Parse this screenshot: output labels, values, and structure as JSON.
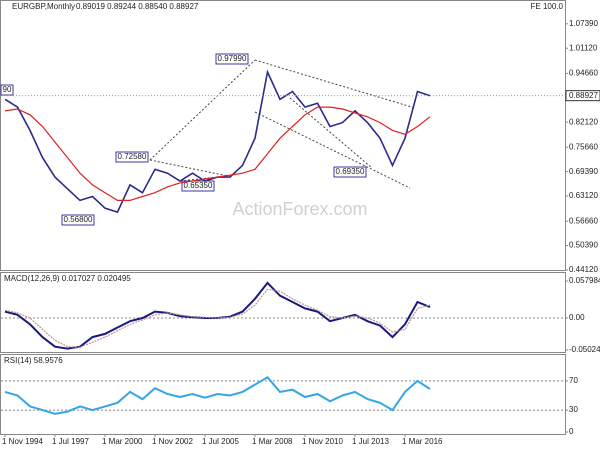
{
  "chart_data": [
    {
      "type": "line",
      "title": "EURGBP,Monthly",
      "subtitle": "0.89019 0.89244 0.88540 0.88927",
      "corner_text": "FE 100.0",
      "watermark": "ActionForex.com",
      "series": [
        {
          "color": "#2b2b8c",
          "values": [
            0.88,
            0.86,
            0.8,
            0.73,
            0.68,
            0.65,
            0.62,
            0.63,
            0.6,
            0.59,
            0.66,
            0.64,
            0.7,
            0.69,
            0.67,
            0.69,
            0.67,
            0.68,
            0.68,
            0.71,
            0.78,
            0.95,
            0.88,
            0.9,
            0.86,
            0.87,
            0.81,
            0.82,
            0.85,
            0.82,
            0.78,
            0.71,
            0.78,
            0.9,
            0.88927
          ]
        },
        {
          "color": "#e02020",
          "values": [
            0.85,
            0.855,
            0.84,
            0.81,
            0.77,
            0.73,
            0.69,
            0.66,
            0.64,
            0.62,
            0.62,
            0.63,
            0.64,
            0.655,
            0.665,
            0.67,
            0.675,
            0.68,
            0.685,
            0.69,
            0.7,
            0.74,
            0.78,
            0.81,
            0.84,
            0.86,
            0.86,
            0.855,
            0.845,
            0.835,
            0.82,
            0.8,
            0.79,
            0.81,
            0.835
          ]
        }
      ],
      "annotations": [
        "0.97990",
        "0.72580",
        "0.65350",
        "0.56800",
        "0.69350",
        "90"
      ],
      "ylim": [
        0.4412,
        1.13
      ],
      "yticks": [
        {
          "value": 0.4412,
          "label": "0.44120"
        },
        {
          "value": 0.5039,
          "label": "0.50390"
        },
        {
          "value": 0.5666,
          "label": "0.56660"
        },
        {
          "value": 0.6312,
          "label": "0.63120"
        },
        {
          "value": 0.6939,
          "label": "0.69390"
        },
        {
          "value": 0.7566,
          "label": "0.75660"
        },
        {
          "value": 0.8212,
          "label": "0.82120"
        },
        {
          "value": 0.9466,
          "label": "0.94660"
        },
        {
          "value": 1.0112,
          "label": "1.01120"
        },
        {
          "value": 1.0739,
          "label": "1.07390"
        }
      ]
    },
    {
      "type": "line",
      "title": "MACD(12,26,9) 0.017027 0.020495",
      "series": [
        {
          "color": "#1a1a80",
          "values": [
            0.01,
            0.005,
            -0.01,
            -0.03,
            -0.045,
            -0.048,
            -0.045,
            -0.03,
            -0.025,
            -0.015,
            -0.005,
            0.0,
            0.01,
            0.008,
            0.003,
            0.001,
            0.0,
            0.0,
            0.002,
            0.01,
            0.03,
            0.055,
            0.035,
            0.025,
            0.015,
            0.01,
            -0.005,
            0.0,
            0.005,
            -0.005,
            -0.012,
            -0.03,
            -0.01,
            0.025,
            0.017027
          ]
        },
        {
          "color": "#c89090",
          "values": [
            0.012,
            0.008,
            0.0,
            -0.018,
            -0.035,
            -0.045,
            -0.046,
            -0.038,
            -0.03,
            -0.02,
            -0.01,
            -0.003,
            0.005,
            0.008,
            0.005,
            0.002,
            0.001,
            0.0,
            0.001,
            0.006,
            0.02,
            0.045,
            0.042,
            0.03,
            0.02,
            0.012,
            0.002,
            0.0,
            0.003,
            0.0,
            -0.008,
            -0.022,
            -0.018,
            0.015,
            0.020495
          ]
        }
      ],
      "ylim": [
        -0.050241,
        0.057984
      ],
      "yticks": [
        -0.050241,
        {
          "value": 0,
          "label": "0.00"
        },
        0.057984
      ]
    },
    {
      "type": "line",
      "title": "RSI(14) 58.9576",
      "categories": [
        "1 Nov 1994",
        null,
        null,
        null,
        "1 Jul 1997",
        null,
        null,
        null,
        "1 Mar 2000",
        null,
        null,
        null,
        "1 Nov 2002",
        null,
        null,
        null,
        "1 Jul 2005",
        null,
        null,
        null,
        "1 Mar 2008",
        null,
        null,
        null,
        "1 Nov 2010",
        null,
        null,
        null,
        "1 Jul 2013",
        null,
        null,
        null,
        "1 Mar 2016",
        null,
        null
      ],
      "series": [
        {
          "color": "#33a6e8",
          "values": [
            55,
            50,
            35,
            30,
            25,
            28,
            35,
            30,
            35,
            40,
            55,
            45,
            60,
            52,
            48,
            52,
            47,
            52,
            50,
            55,
            65,
            75,
            55,
            58,
            48,
            52,
            42,
            50,
            55,
            45,
            40,
            30,
            55,
            70,
            58.9576
          ]
        }
      ],
      "ylim": [
        0,
        100
      ],
      "yticks": [
        0,
        30,
        70
      ]
    }
  ]
}
